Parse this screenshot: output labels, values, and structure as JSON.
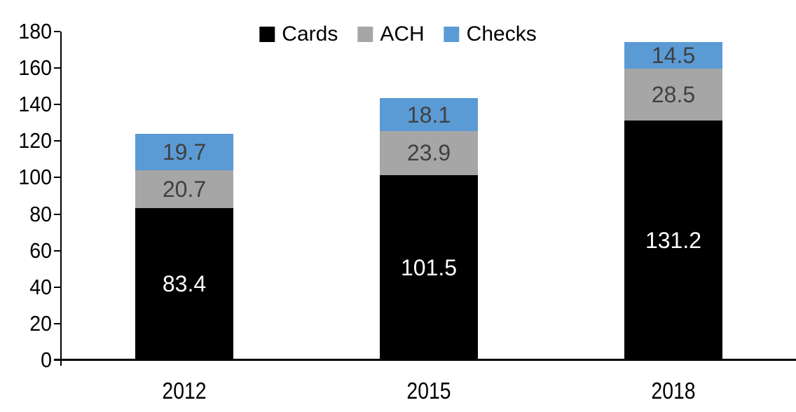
{
  "chart_data": {
    "type": "bar",
    "stacked": true,
    "title": "",
    "xlabel": "",
    "ylabel": "",
    "categories": [
      "2012",
      "2015",
      "2018"
    ],
    "series": [
      {
        "name": "Cards",
        "values": [
          83.4,
          101.5,
          131.2
        ],
        "color": "#000000",
        "label_color": "#ffffff"
      },
      {
        "name": "ACH",
        "values": [
          20.7,
          23.9,
          28.5
        ],
        "color": "#a6a6a6",
        "label_color": "#404040"
      },
      {
        "name": "Checks",
        "values": [
          19.7,
          18.1,
          14.5
        ],
        "color": "#5b9bd5",
        "label_color": "#404040"
      }
    ],
    "totals": [
      123.8,
      143.5,
      174.2
    ],
    "ylim": [
      0,
      180
    ],
    "yticks": [
      0,
      20,
      40,
      60,
      80,
      100,
      120,
      140,
      160,
      180
    ],
    "grid": false,
    "legend_position": "top-center",
    "legend_entries": [
      "Cards",
      "ACH",
      "Checks"
    ],
    "axis_color": "#000000",
    "background_color": "#ffffff",
    "data_labels_shown": true
  }
}
